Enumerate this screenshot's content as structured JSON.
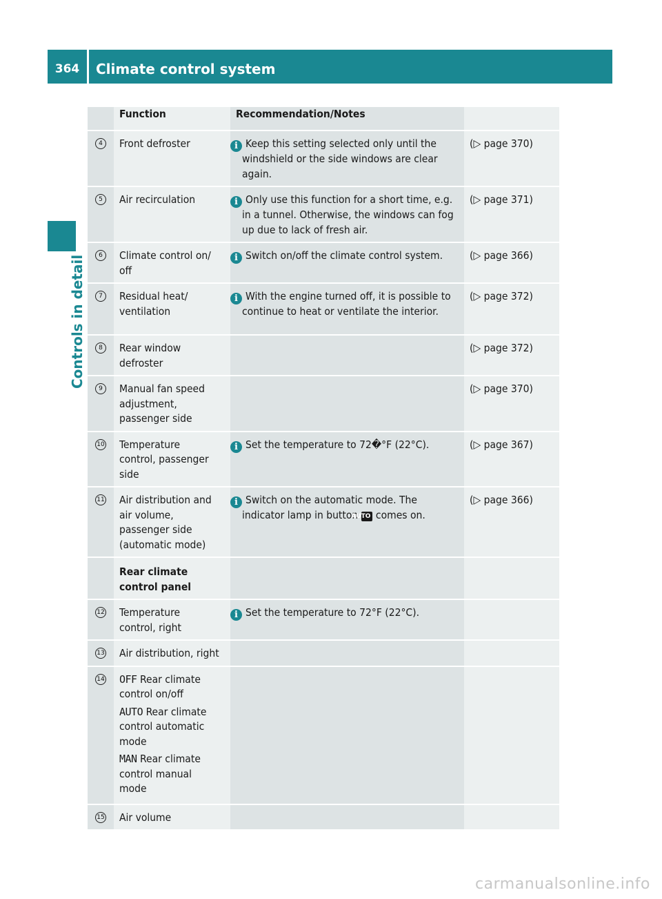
{
  "header": {
    "page_number": "364",
    "title": "Climate control system"
  },
  "side_tab": {
    "label": "Controls in detail"
  },
  "table": {
    "columns": [
      "",
      "Function",
      "Recommendation/Notes",
      ""
    ],
    "rows": [
      {
        "num": "4",
        "function": "Front defroster",
        "note": "Keep this setting selected only until the windshield or the side windows are clear again.",
        "ref": "(▷ page 370)"
      },
      {
        "num": "5",
        "function": "Air recirculation",
        "note": "Only use this function for a short time, e.g. in a tunnel. Otherwise, the windows can fog up due to lack of fresh air.",
        "ref": "(▷ page 371)"
      },
      {
        "num": "6",
        "function": "Climate control on/\noff",
        "note": "Switch on/off the climate control system.",
        "ref": "(▷ page 366)"
      },
      {
        "num": "7",
        "function": "Residual heat/\nventilation",
        "note": "With the engine turned off, it is possible to continue to heat or ventilate the interior.",
        "ref": "(▷ page 372)"
      },
      {
        "num": "8",
        "function": "Rear window\ndefroster",
        "note": "",
        "ref": "(▷ page 372)"
      },
      {
        "num": "9",
        "function": "Manual fan speed\nadjustment,\npassenger side",
        "note": "",
        "ref": "(▷ page 370)"
      },
      {
        "num": "10",
        "function": "Temperature\ncontrol, passenger\nside",
        "note": "Set the temperature to 72�°F (22°C).",
        "ref": "(▷ page 367)"
      },
      {
        "num": "11",
        "function": "Air distribution and\nair volume,\npassenger side\n(automatic mode)",
        "note_before": "Switch on the automatic mode. The indicator lamp in button",
        "note_key": "AUTO",
        "note_after": "comes on.",
        "ref": "(▷ page 366)"
      }
    ],
    "section_heading": "Rear climate\ncontrol panel",
    "rear_rows": [
      {
        "num": "12",
        "function": "Temperature\ncontrol, right",
        "note": "Set the temperature to 72°F (22°C)."
      },
      {
        "num": "13",
        "function": "Air distribution, right"
      },
      {
        "num": "14",
        "modes": [
          {
            "code": "OFF",
            "text": "Rear climate\ncontrol on/off"
          },
          {
            "code": "AUTO",
            "text": "Rear climate\ncontrol automatic\nmode"
          },
          {
            "code": "MAN",
            "text": "Rear climate\ncontrol manual\nmode"
          }
        ]
      },
      {
        "num": "15",
        "function": "Air volume"
      }
    ]
  },
  "icons": {
    "info": "info-icon",
    "accent_color": "#1a8892"
  },
  "watermark": "carmanualsonline.info"
}
